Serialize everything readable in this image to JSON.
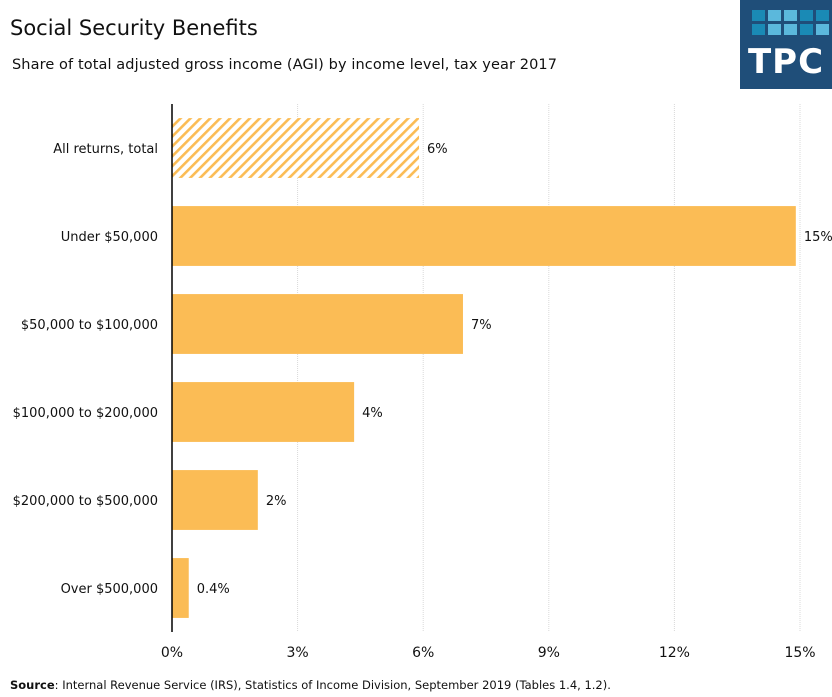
{
  "header": {
    "title": "Social Security Benefits",
    "subtitle": "Share of total adjusted gross income (AGI) by income level, tax year 2017"
  },
  "logo": {
    "text": "TPC",
    "background": "#1f4e79",
    "squares": [
      "#1a8ab5",
      "#5bb8dc",
      "#5bb8dc",
      "#1a8ab5",
      "#1a8ab5",
      "#1a8ab5",
      "#5bb8dc",
      "#5bb8dc",
      "#1a8ab5",
      "#5bb8dc"
    ]
  },
  "footer": {
    "source_label": "Source",
    "source_text": ": Internal Revenue Service (IRS), Statistics of Income Division, September 2019 (Tables 1.4, 1.2)."
  },
  "colors": {
    "bar": "#fbbc55",
    "axis": "#000000",
    "grid": "#d9d9d9",
    "text": "#111111"
  },
  "chart_data": {
    "type": "bar",
    "orientation": "horizontal",
    "title": "Social Security Benefits",
    "subtitle": "Share of total adjusted gross income (AGI) by income level, tax year 2017",
    "xlabel": "",
    "ylabel": "",
    "categories": [
      "All returns, total",
      "Under $50,000",
      "$50,000 to $100,000",
      "$100,000 to $200,000",
      "$200,000 to $500,000",
      "Over $500,000"
    ],
    "values": [
      5.9,
      14.9,
      6.95,
      4.35,
      2.05,
      0.4
    ],
    "data_labels": [
      "6%",
      "15%",
      "7%",
      "4%",
      "2%",
      "0.4%"
    ],
    "patterns": [
      "hatched",
      "solid",
      "solid",
      "solid",
      "solid",
      "solid"
    ],
    "xlim": [
      0,
      15
    ],
    "x_ticks": [
      0,
      3,
      6,
      9,
      12,
      15
    ],
    "x_tick_labels": [
      "0%",
      "3%",
      "6%",
      "9%",
      "12%",
      "15%"
    ],
    "grid": true,
    "legend": "none"
  }
}
